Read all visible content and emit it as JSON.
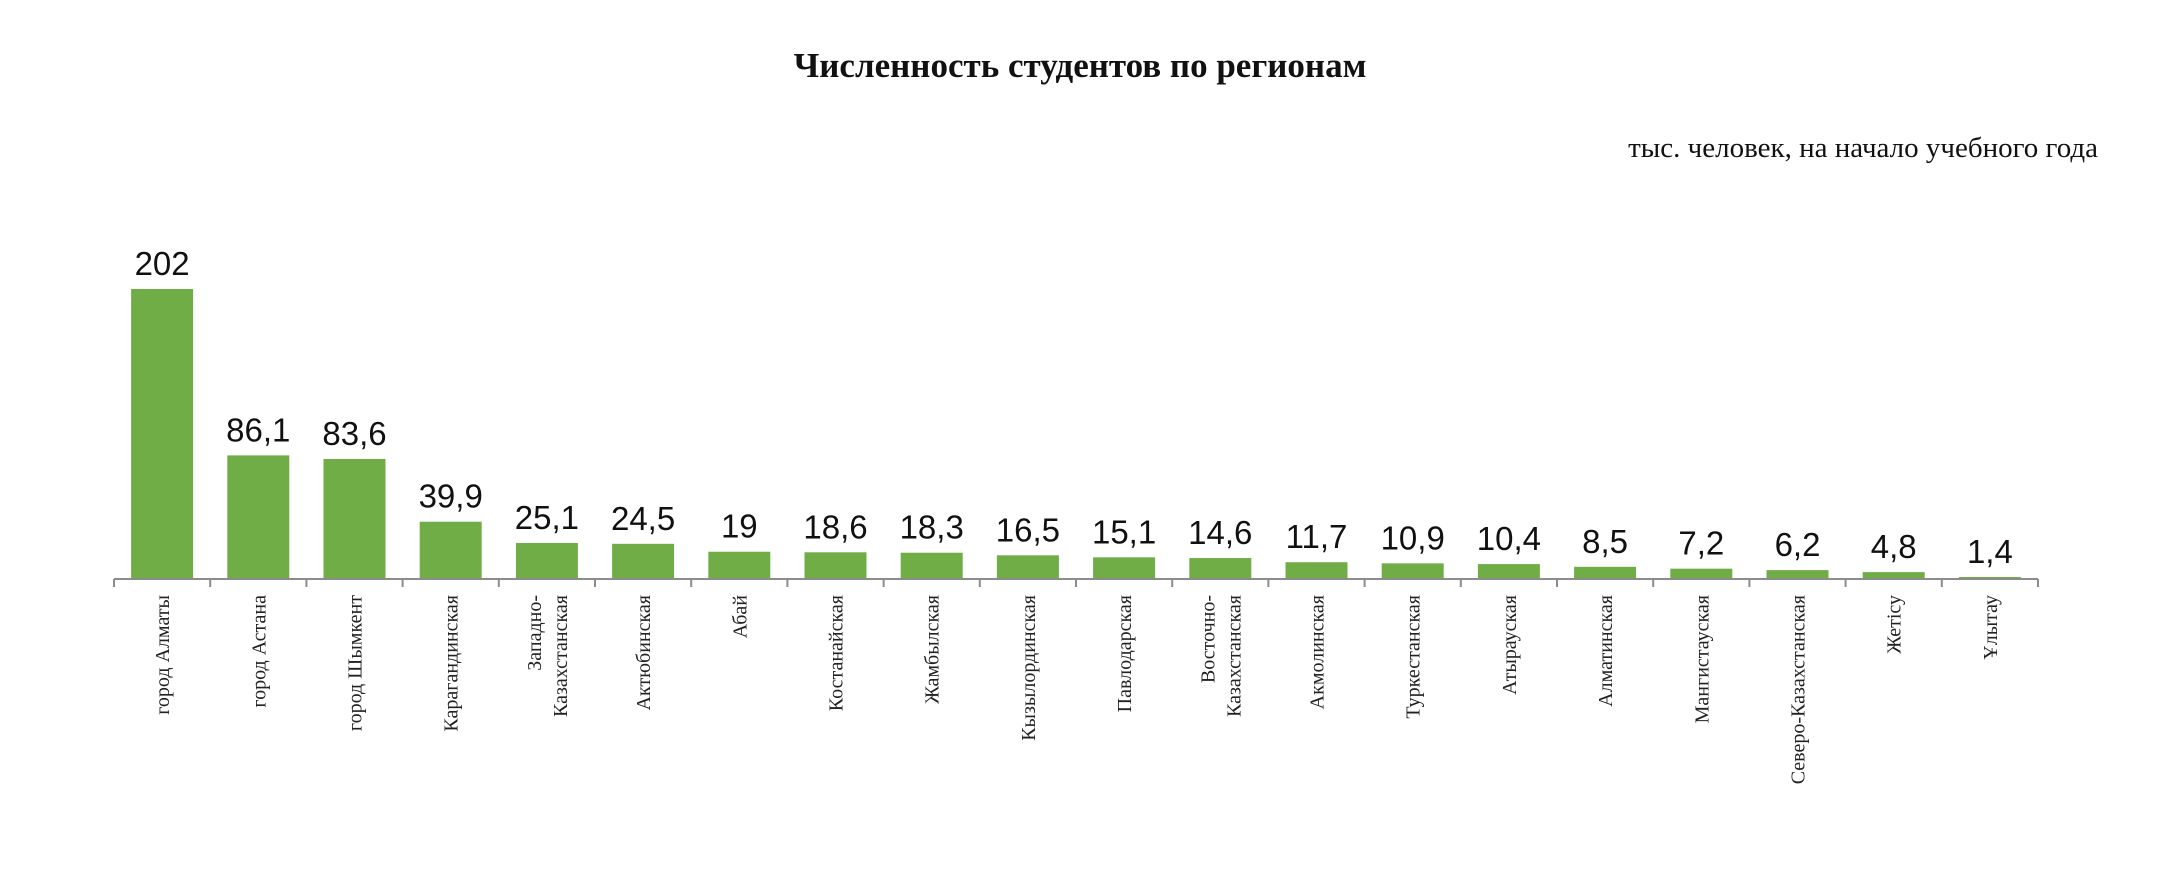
{
  "chart_data": {
    "type": "bar",
    "title": "Численность студентов по регионам",
    "subtitle": "тыс. человек, на начало учебного года",
    "categories": [
      "город Алматы",
      "город Астана",
      "город Шымкент",
      "Карагандинская",
      "Западно-\nКазахстанская",
      "Актюбинская",
      "Абай",
      "Костанайская",
      "Жамбылская",
      "Кызылординская",
      "Павлодарская",
      "Восточно-\nКазахстанская",
      "Акмолинская",
      "Туркестанская",
      "Атырауская",
      "Алматинская",
      "Мангистауская",
      "Северо-Казахстанская",
      "Жетісу",
      "Ұлытау"
    ],
    "values": [
      202,
      86.1,
      83.6,
      39.9,
      25.1,
      24.5,
      19,
      18.6,
      18.3,
      16.5,
      15.1,
      14.6,
      11.7,
      10.9,
      10.4,
      8.5,
      7.2,
      6.2,
      4.8,
      1.4
    ],
    "value_labels": [
      "202",
      "86,1",
      "83,6",
      "39,9",
      "25,1",
      "24,5",
      "19",
      "18,6",
      "18,3",
      "16,5",
      "15,1",
      "14,6",
      "11,7",
      "10,9",
      "10,4",
      "8,5",
      "7,2",
      "6,2",
      "4,8",
      "1,4"
    ],
    "ylim": [
      0,
      202
    ],
    "grid": false,
    "legend": "none",
    "bar_color": "#70ad47"
  }
}
